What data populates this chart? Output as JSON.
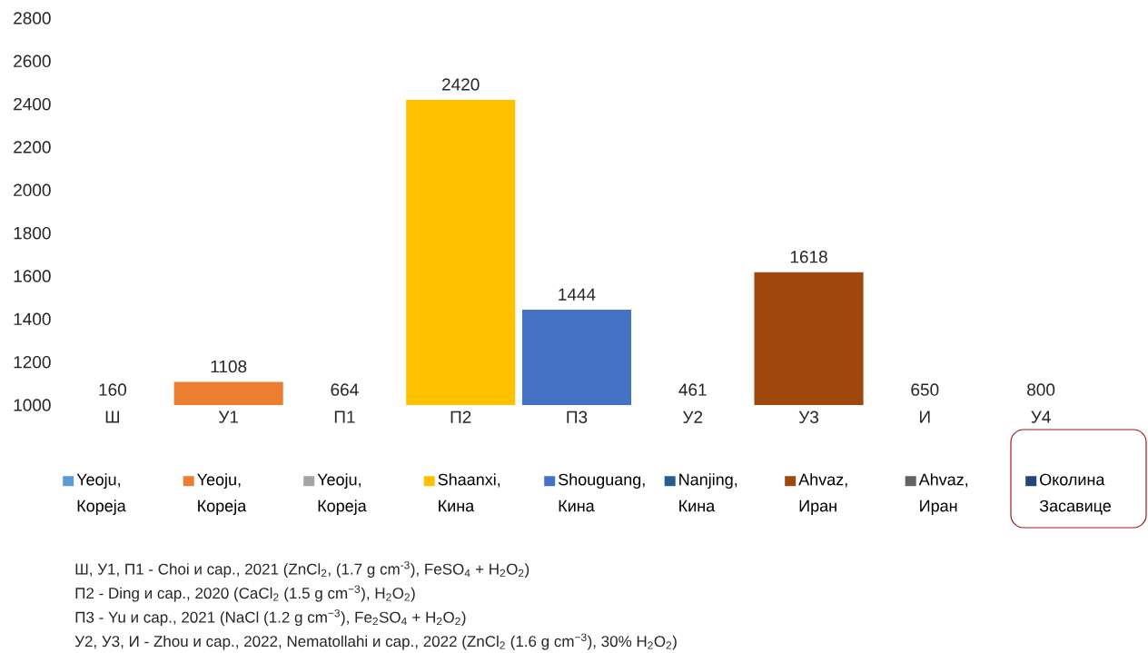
{
  "chart_data": {
    "type": "bar",
    "categories": [
      "Ш",
      "У1",
      "П1",
      "П2",
      "П3",
      "У2",
      "У3",
      "И",
      "У4"
    ],
    "series": [
      {
        "name": "Yeoju, Кореја",
        "color": "#5b9bd5",
        "values": [
          null,
          null,
          null,
          null,
          null,
          null,
          null,
          null,
          null
        ],
        "value_labels": [
          "160",
          null,
          null,
          null,
          null,
          null,
          null,
          null,
          null
        ]
      },
      {
        "name": "Yeoju, Кореја",
        "color": "#ed7d31",
        "values": [
          null,
          1108,
          null,
          null,
          null,
          null,
          null,
          null,
          null
        ],
        "value_labels": [
          null,
          "1108",
          null,
          null,
          null,
          null,
          null,
          null,
          null
        ]
      },
      {
        "name": "Yeoju, Кореја",
        "color": "#a5a5a5",
        "values": [
          null,
          null,
          null,
          null,
          null,
          null,
          null,
          null,
          null
        ],
        "value_labels": [
          null,
          null,
          "664",
          null,
          null,
          null,
          null,
          null,
          null
        ]
      },
      {
        "name": "Shaanxi, Кина",
        "color": "#ffc000",
        "values": [
          null,
          null,
          null,
          2420,
          null,
          null,
          null,
          null,
          null
        ],
        "value_labels": [
          null,
          null,
          null,
          "2420",
          null,
          null,
          null,
          null,
          null
        ]
      },
      {
        "name": "Shouguang, Кина",
        "color": "#4472c4",
        "values": [
          null,
          null,
          null,
          null,
          1444,
          null,
          null,
          null,
          null
        ],
        "value_labels": [
          null,
          null,
          null,
          null,
          "1444",
          null,
          null,
          null,
          null
        ]
      },
      {
        "name": "Nanjing, Кина",
        "color": "#255e91",
        "values": [
          null,
          null,
          null,
          null,
          null,
          null,
          null,
          null,
          null
        ],
        "value_labels": [
          null,
          null,
          null,
          null,
          null,
          "461",
          null,
          null,
          null
        ]
      },
      {
        "name": "Ahvaz, Иран",
        "color": "#9e480e",
        "values": [
          null,
          null,
          null,
          null,
          null,
          null,
          1618,
          null,
          null
        ],
        "value_labels": [
          null,
          null,
          null,
          null,
          null,
          null,
          "1618",
          null,
          null
        ]
      },
      {
        "name": "Ahvaz, Иран",
        "color": "#636363",
        "values": [
          null,
          null,
          null,
          null,
          null,
          null,
          null,
          null,
          null
        ],
        "value_labels": [
          null,
          null,
          null,
          null,
          null,
          null,
          null,
          "650",
          null
        ]
      },
      {
        "name": "Околина Засавице",
        "color": "#264478",
        "values": [
          null,
          null,
          null,
          null,
          null,
          null,
          null,
          null,
          null
        ],
        "value_labels": [
          null,
          null,
          null,
          null,
          null,
          null,
          null,
          null,
          "800"
        ]
      }
    ],
    "ylim": [
      1000,
      2800
    ],
    "yticks": [
      1000,
      1200,
      1400,
      1600,
      1800,
      2000,
      2200,
      2400,
      2600,
      2800
    ],
    "legend": "bottom",
    "annotations": [
      "Ш, У1, П1 - Choi и сар., 2021 (ZnCl$_{2}$, (1.7 g cm$^{-3}$), FeSO$_{4}$ + H$_{2}$O$_{2}$)",
      "П2 - Ding и сар., 2020 (CaCl$_{2}$ (1.5 g cm$^{−3}$), H$_{2}$O$_{2}$)",
      "П3 - Yu и сар., 2021 (NaCl (1.2 g cm$^{−3}$), Fe$_{2}$SO$_{4}$ + H$_{2}$O$_{2}$)",
      "У2, У3, И - Zhou и сар., 2022, Nematollahi и сар., 2022 (ZnCl$_{2}$ (1.6 g cm$^{−3}$), 30% H$_{2}$O$_{2}$)"
    ]
  }
}
